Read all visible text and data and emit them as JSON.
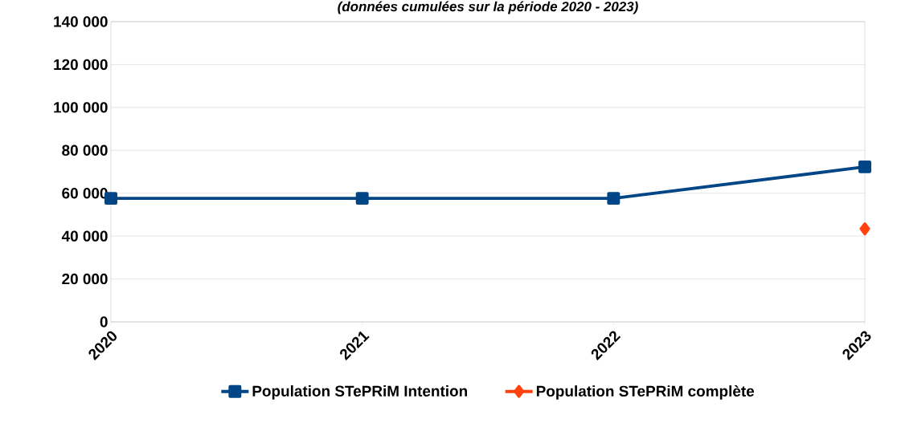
{
  "chart_data": {
    "type": "line",
    "title": "(données cumulées sur la période 2020 - 2023)",
    "categories": [
      "2020",
      "2021",
      "2022",
      "2023"
    ],
    "series": [
      {
        "name": "Population STePRiM Intention",
        "color": "#004586",
        "marker": "square",
        "values": [
          57600,
          57600,
          57600,
          72300
        ]
      },
      {
        "name": "Population STePRiM complète",
        "color": "#ff420e",
        "marker": "diamond",
        "values": [
          null,
          null,
          null,
          43400
        ]
      }
    ],
    "ylim": [
      0,
      140000
    ],
    "yticks": [
      {
        "value": 0,
        "label": "0"
      },
      {
        "value": 20000,
        "label": "20 000"
      },
      {
        "value": 40000,
        "label": "40 000"
      },
      {
        "value": 60000,
        "label": "60 000"
      },
      {
        "value": 80000,
        "label": "80 000"
      },
      {
        "value": 100000,
        "label": "100 000"
      },
      {
        "value": 120000,
        "label": "120 000"
      },
      {
        "value": 140000,
        "label": "140 000"
      }
    ],
    "grid": "y",
    "legend": "bottom"
  }
}
